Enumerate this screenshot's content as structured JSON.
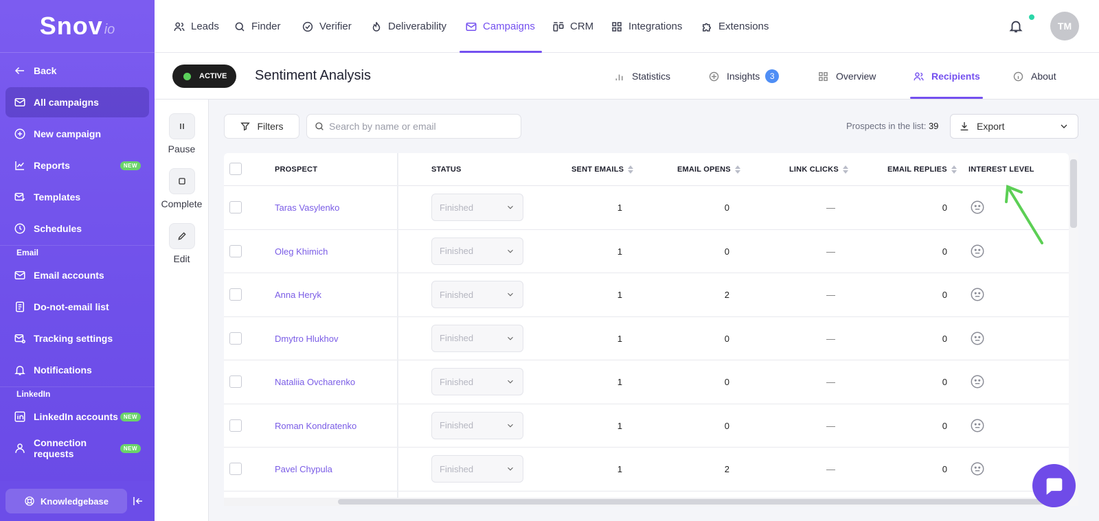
{
  "logo": {
    "main": "Snov",
    "sub": "io"
  },
  "sidebar": {
    "back": "Back",
    "items": [
      {
        "label": "All campaigns",
        "icon": "mail-icon",
        "active": true
      },
      {
        "label": "New campaign",
        "icon": "plus-circle-icon"
      },
      {
        "label": "Reports",
        "icon": "chart-icon",
        "badge": "NEW"
      },
      {
        "label": "Templates",
        "icon": "mail-edit-icon"
      },
      {
        "label": "Schedules",
        "icon": "clock-icon"
      }
    ],
    "email_section": "Email",
    "email_items": [
      {
        "label": "Email accounts",
        "icon": "mail-icon"
      },
      {
        "label": "Do-not-email list",
        "icon": "list-icon"
      },
      {
        "label": "Tracking settings",
        "icon": "mail-settings-icon"
      },
      {
        "label": "Notifications",
        "icon": "bell-icon"
      }
    ],
    "linkedin_section": "LinkedIn",
    "linkedin_items": [
      {
        "label": "LinkedIn accounts",
        "icon": "linkedin-icon",
        "badge": "NEW"
      },
      {
        "label": "Connection requests",
        "icon": "user-icon",
        "badge": "NEW"
      }
    ],
    "knowledgebase": "Knowledgebase"
  },
  "topnav": [
    "Leads",
    "Finder",
    "Verifier",
    "Deliverability",
    "Campaigns",
    "CRM",
    "Integrations",
    "Extensions"
  ],
  "topnav_active": "Campaigns",
  "user_initials": "TM",
  "campaign": {
    "status": "ACTIVE",
    "title": "Sentiment Analysis",
    "tabs": {
      "statistics": "Statistics",
      "insights": "Insights",
      "insights_count": "3",
      "overview": "Overview",
      "recipients": "Recipients",
      "about": "About"
    },
    "active_tab": "Recipients"
  },
  "actions": {
    "pause": "Pause",
    "complete": "Complete",
    "edit": "Edit"
  },
  "toolbar": {
    "filters": "Filters",
    "search_placeholder": "Search by name or email",
    "prospects_label": "Prospects in the list:",
    "prospects_count": "39",
    "export": "Export"
  },
  "table": {
    "headers": {
      "prospect": "PROSPECT",
      "status": "STATUS",
      "sent": "SENT EMAILS",
      "opens": "EMAIL OPENS",
      "clicks": "LINK CLICKS",
      "replies": "EMAIL REPLIES",
      "interest": "INTEREST LEVEL"
    },
    "rows": [
      {
        "name": "Taras Vasylenko",
        "status": "Finished",
        "sent": "1",
        "opens": "0",
        "clicks": "—",
        "replies": "0"
      },
      {
        "name": "Oleg Khimich",
        "status": "Finished",
        "sent": "1",
        "opens": "0",
        "clicks": "—",
        "replies": "0"
      },
      {
        "name": "Anna Heryk",
        "status": "Finished",
        "sent": "1",
        "opens": "2",
        "clicks": "—",
        "replies": "0"
      },
      {
        "name": "Dmytro Hlukhov",
        "status": "Finished",
        "sent": "1",
        "opens": "0",
        "clicks": "—",
        "replies": "0"
      },
      {
        "name": "Nataliia Ovcharenko",
        "status": "Finished",
        "sent": "1",
        "opens": "0",
        "clicks": "—",
        "replies": "0"
      },
      {
        "name": "Roman Kondratenko",
        "status": "Finished",
        "sent": "1",
        "opens": "0",
        "clicks": "—",
        "replies": "0"
      },
      {
        "name": "Pavel Chypula",
        "status": "Finished",
        "sent": "1",
        "opens": "2",
        "clicks": "—",
        "replies": "0"
      }
    ]
  },
  "colors": {
    "accent": "#7450ef",
    "sidebar": "#6f50ea",
    "annotation_arrow": "#5ccf55",
    "online_dot": "#2bd6a8"
  }
}
